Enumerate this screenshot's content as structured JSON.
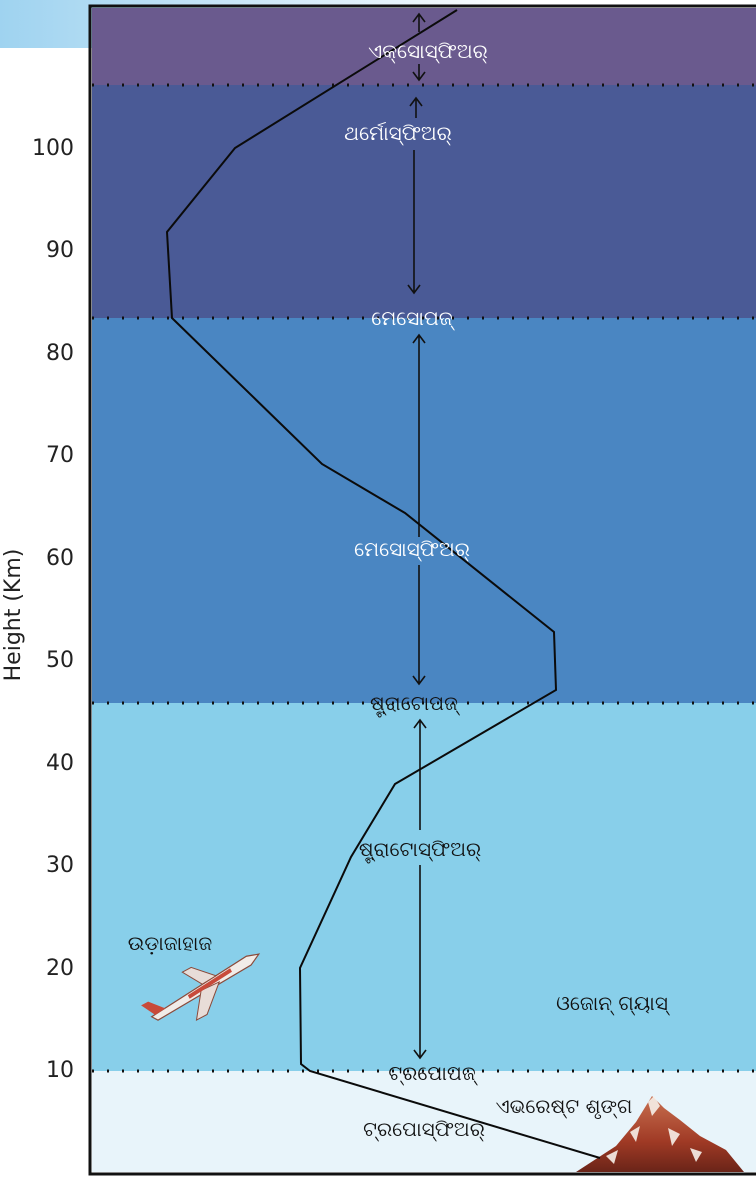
{
  "axis": {
    "ylabel": "Height (Km)",
    "ticks": [
      "100",
      "90",
      "80",
      "70",
      "60",
      "50",
      "40",
      "30",
      "20",
      "10"
    ]
  },
  "layers": {
    "exosphere": "ଏକ୍ସୋସ୍ଫିଅର୍",
    "thermosphere": "ଥର୍ମୋସ୍ଫିଅର୍",
    "mesopause": "ମେସୋପଜ୍",
    "mesosphere": "ମେସୋସ୍ଫିଅର୍",
    "stratopause": "ଷ୍ଟ୍ରାଟୋପଜ୍",
    "stratosphere": "ଷ୍ଟ୍ରାଟୋସ୍ଫିଅର୍",
    "tropopause": "ଟ୍ରପୋପଜ୍",
    "troposphere": "ଟ୍ରପୋସ୍ଫିଅର୍"
  },
  "annotations": {
    "airplane": "ଉଡ଼ାଜାହାଜ",
    "ozone": "ଓଜୋନ୍ ଗ୍ୟାସ୍",
    "everest": "ଏଭରେଷ୍ଟ ଶୃଙ୍ଗ"
  },
  "colors": {
    "exosphere": "#6a5a8e",
    "thermosphere": "#4a5a96",
    "mesosphere": "#4a86c2",
    "stratosphere": "#88cfea",
    "troposphere": "#e8f4fa"
  }
}
